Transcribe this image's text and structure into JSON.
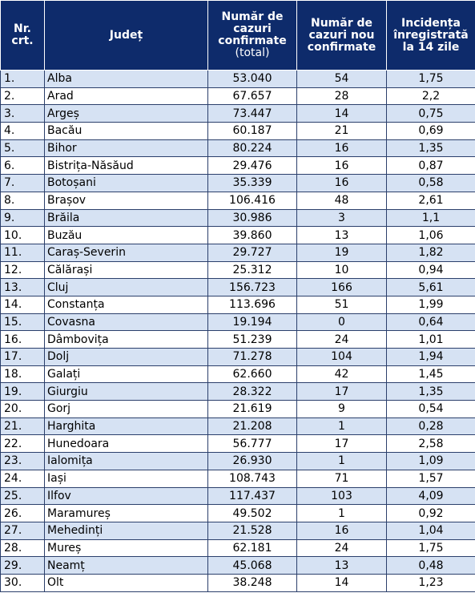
{
  "headers": {
    "nr": "Nr. crt.",
    "judet": "Județ",
    "total_main": "Număr de cazuri confirmate",
    "total_sub": "(total)",
    "new": "Număr de cazuri nou confirmate",
    "incidence": "Incidența înregistrată la 14 zile"
  },
  "rows": [
    {
      "nr": "1.",
      "judet": "Alba",
      "total": "53.040",
      "new": "54",
      "incidence": "1,75"
    },
    {
      "nr": "2.",
      "judet": "Arad",
      "total": "67.657",
      "new": "28",
      "incidence": "2,2"
    },
    {
      "nr": "3.",
      "judet": "Argeș",
      "total": "73.447",
      "new": "14",
      "incidence": "0,75"
    },
    {
      "nr": "4.",
      "judet": "Bacău",
      "total": "60.187",
      "new": "21",
      "incidence": "0,69"
    },
    {
      "nr": "5.",
      "judet": "Bihor",
      "total": "80.224",
      "new": "16",
      "incidence": "1,35"
    },
    {
      "nr": "6.",
      "judet": "Bistrița-Năsăud",
      "total": "29.476",
      "new": "16",
      "incidence": "0,87"
    },
    {
      "nr": "7.",
      "judet": "Botoșani",
      "total": "35.339",
      "new": "16",
      "incidence": "0,58"
    },
    {
      "nr": "8.",
      "judet": "Brașov",
      "total": "106.416",
      "new": "48",
      "incidence": "2,61"
    },
    {
      "nr": "9.",
      "judet": "Brăila",
      "total": "30.986",
      "new": "3",
      "incidence": "1,1"
    },
    {
      "nr": "10.",
      "judet": "Buzău",
      "total": "39.860",
      "new": "13",
      "incidence": "1,06"
    },
    {
      "nr": "11.",
      "judet": "Caraș-Severin",
      "total": "29.727",
      "new": "19",
      "incidence": "1,82"
    },
    {
      "nr": "12.",
      "judet": "Călărași",
      "total": "25.312",
      "new": "10",
      "incidence": "0,94"
    },
    {
      "nr": "13.",
      "judet": "Cluj",
      "total": "156.723",
      "new": "166",
      "incidence": "5,61"
    },
    {
      "nr": "14.",
      "judet": "Constanța",
      "total": "113.696",
      "new": "51",
      "incidence": "1,99"
    },
    {
      "nr": "15.",
      "judet": "Covasna",
      "total": "19.194",
      "new": "0",
      "incidence": "0,64"
    },
    {
      "nr": "16.",
      "judet": "Dâmbovița",
      "total": "51.239",
      "new": "24",
      "incidence": "1,01"
    },
    {
      "nr": "17.",
      "judet": "Dolj",
      "total": "71.278",
      "new": "104",
      "incidence": "1,94"
    },
    {
      "nr": "18.",
      "judet": "Galați",
      "total": "62.660",
      "new": "42",
      "incidence": "1,45"
    },
    {
      "nr": "19.",
      "judet": "Giurgiu",
      "total": "28.322",
      "new": "17",
      "incidence": "1,35"
    },
    {
      "nr": "20.",
      "judet": "Gorj",
      "total": "21.619",
      "new": "9",
      "incidence": "0,54"
    },
    {
      "nr": "21.",
      "judet": "Harghita",
      "total": "21.208",
      "new": "1",
      "incidence": "0,28"
    },
    {
      "nr": "22.",
      "judet": "Hunedoara",
      "total": "56.777",
      "new": "17",
      "incidence": "2,58"
    },
    {
      "nr": "23.",
      "judet": "Ialomița",
      "total": "26.930",
      "new": "1",
      "incidence": "1,09"
    },
    {
      "nr": "24.",
      "judet": "Iași",
      "total": "108.743",
      "new": "71",
      "incidence": "1,57"
    },
    {
      "nr": "25.",
      "judet": "Ilfov",
      "total": "117.437",
      "new": "103",
      "incidence": "4,09"
    },
    {
      "nr": "26.",
      "judet": "Maramureș",
      "total": "49.502",
      "new": "1",
      "incidence": "0,92"
    },
    {
      "nr": "27.",
      "judet": "Mehedinți",
      "total": "21.528",
      "new": "16",
      "incidence": "1,04"
    },
    {
      "nr": "28.",
      "judet": "Mureș",
      "total": "62.181",
      "new": "24",
      "incidence": "1,75"
    },
    {
      "nr": "29.",
      "judet": "Neamț",
      "total": "45.068",
      "new": "13",
      "incidence": "0,48"
    },
    {
      "nr": "30.",
      "judet": "Olt",
      "total": "38.248",
      "new": "14",
      "incidence": "1,23"
    }
  ],
  "colors": {
    "header_bg": "#0e2b6b",
    "row_alt_bg": "#d6e2f3",
    "border": "#2b3f6b"
  }
}
